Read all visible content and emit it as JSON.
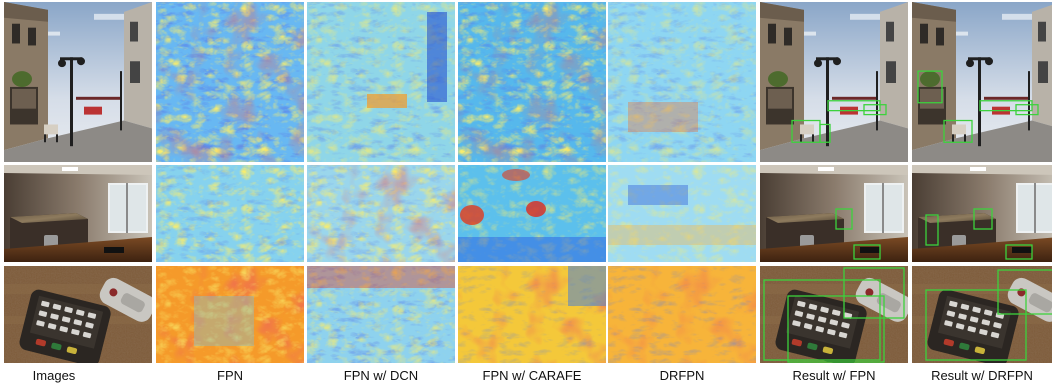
{
  "columns": [
    {
      "id": "images",
      "label": "Images"
    },
    {
      "id": "fpn",
      "label": "FPN"
    },
    {
      "id": "fpn-dcn",
      "label": "FPN  w/ DCN"
    },
    {
      "id": "fpn-carafe",
      "label": "FPN  w/ CARAFE"
    },
    {
      "id": "drfpn",
      "label": "DRFPN"
    },
    {
      "id": "result-fpn",
      "label": "Result  w/ FPN"
    },
    {
      "id": "result-drfpn",
      "label": "Result  w/ DRFPN"
    }
  ],
  "rows": [
    "street-scene",
    "indoor-room",
    "remote-controls"
  ],
  "colors": {
    "detection_box": "#3cd23c",
    "heatmap_low": "#1d3fd6",
    "heatmap_mid": "#f5e63a",
    "heatmap_high": "#d81e1e"
  }
}
